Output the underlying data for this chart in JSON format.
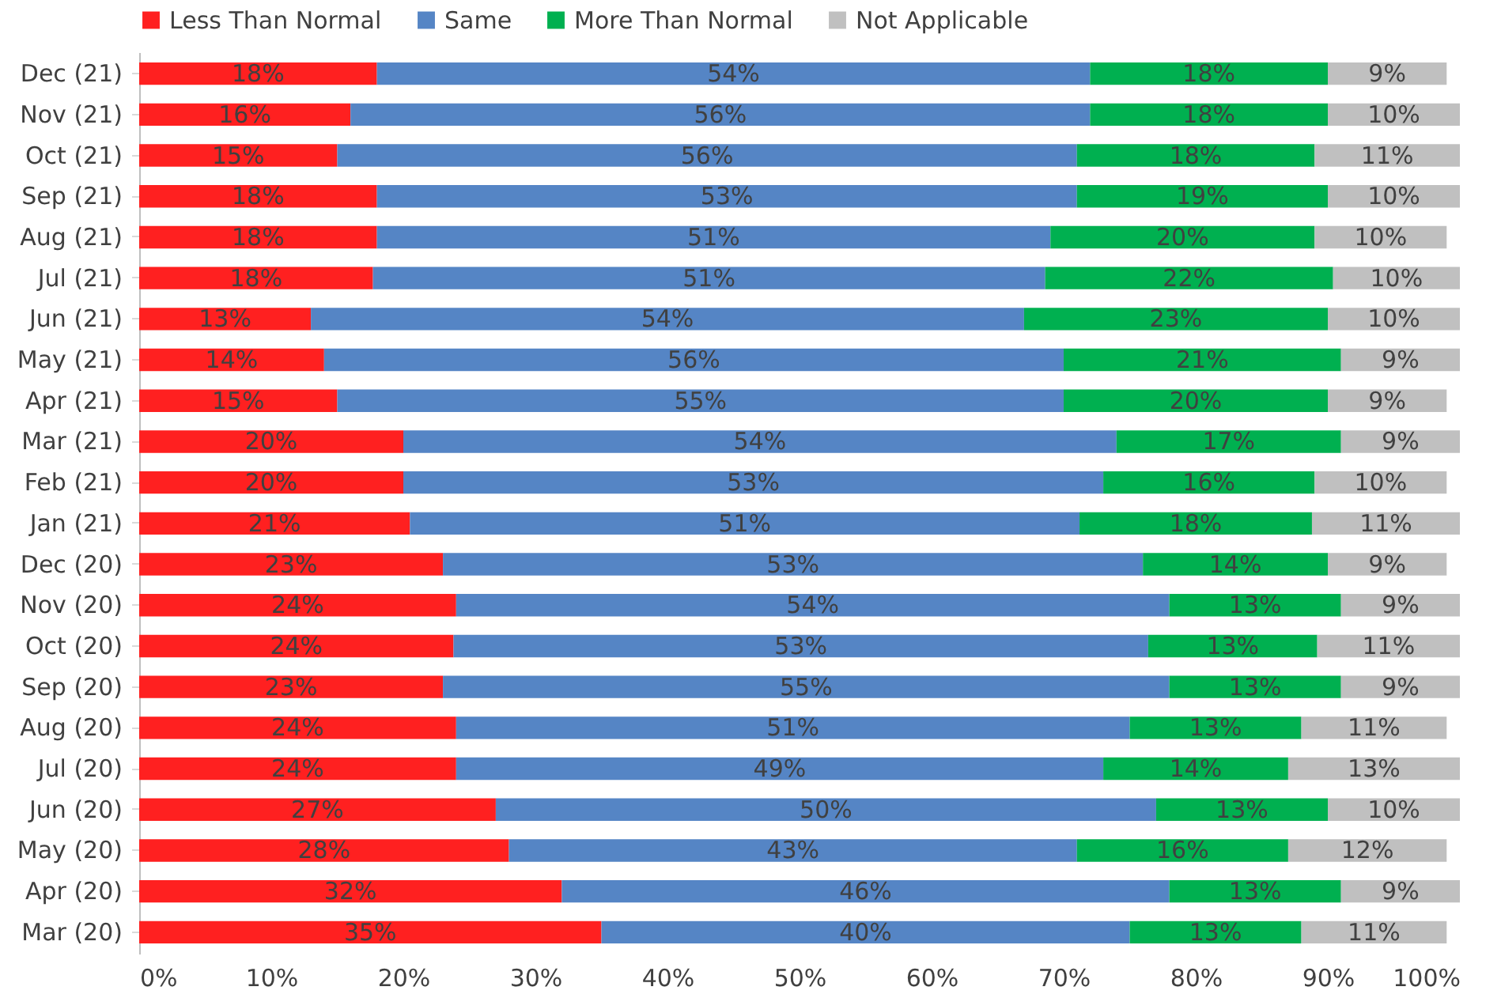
{
  "chart_data": {
    "type": "bar",
    "orientation": "horizontal",
    "stacked": true,
    "legend": "top",
    "grid": false,
    "xlim": [
      0,
      100
    ],
    "xticks": [
      {
        "value": 0,
        "label": "0%"
      },
      {
        "value": 10,
        "label": "10%"
      },
      {
        "value": 20,
        "label": "20%"
      },
      {
        "value": 30,
        "label": "30%"
      },
      {
        "value": 40,
        "label": "40%"
      },
      {
        "value": 50,
        "label": "50%"
      },
      {
        "value": 60,
        "label": "60%"
      },
      {
        "value": 70,
        "label": "70%"
      },
      {
        "value": 80,
        "label": "80%"
      },
      {
        "value": 90,
        "label": "90%"
      },
      {
        "value": 100,
        "label": "100%"
      }
    ],
    "categories": [
      "Dec (21)",
      "Nov (21)",
      "Oct (21)",
      "Sep (21)",
      "Aug (21)",
      "Jul (21)",
      "Jun (21)",
      "May (21)",
      "Apr (21)",
      "Mar (21)",
      "Feb (21)",
      "Jan (21)",
      "Dec (20)",
      "Nov (20)",
      "Oct (20)",
      "Sep (20)",
      "Aug (20)",
      "Jul (20)",
      "Jun (20)",
      "May (20)",
      "Apr (20)",
      "Mar (20)"
    ],
    "series": [
      {
        "name": "Less Than Normal",
        "color": "#ff2020",
        "values": [
          18,
          16,
          15,
          18,
          18,
          17.7,
          13,
          14,
          15,
          20,
          20,
          20.5,
          23,
          24,
          23.8,
          23,
          24,
          24,
          27,
          28,
          32,
          35
        ],
        "value_labels": [
          "18%",
          "16%",
          "15%",
          "18%",
          "18%",
          "18%",
          "13%",
          "14%",
          "15%",
          "20%",
          "20%",
          "21%",
          "23%",
          "24%",
          "24%",
          "23%",
          "24%",
          "24%",
          "27%",
          "28%",
          "32%",
          "35%"
        ]
      },
      {
        "name": "Same",
        "color": "#5585c5",
        "values": [
          54,
          56,
          56,
          53,
          51,
          50.9,
          54,
          56,
          55,
          54,
          53,
          50.7,
          53,
          54,
          52.6,
          55,
          51,
          49,
          50,
          43,
          46,
          40
        ],
        "value_labels": [
          "54%",
          "56%",
          "56%",
          "53%",
          "51%",
          "51%",
          "54%",
          "56%",
          "55%",
          "54%",
          "53%",
          "51%",
          "53%",
          "54%",
          "53%",
          "55%",
          "51%",
          "49%",
          "50%",
          "43%",
          "46%",
          "40%"
        ]
      },
      {
        "name": "More Than Normal",
        "color": "#00b050",
        "values": [
          18,
          18,
          18,
          19,
          20,
          21.8,
          23,
          21,
          20,
          17,
          16,
          17.6,
          14,
          13,
          12.8,
          13,
          13,
          14,
          13,
          16,
          13,
          13
        ],
        "value_labels": [
          "18%",
          "18%",
          "18%",
          "19%",
          "20%",
          "22%",
          "23%",
          "21%",
          "20%",
          "17%",
          "16%",
          "18%",
          "14%",
          "13%",
          "13%",
          "13%",
          "13%",
          "14%",
          "13%",
          "16%",
          "13%",
          "13%"
        ]
      },
      {
        "name": "Not Applicable",
        "color": "#c0c0c0",
        "values": [
          9,
          10,
          11,
          10,
          10,
          9.6,
          10,
          9,
          9,
          9,
          10,
          11.2,
          9,
          9,
          10.8,
          9,
          11,
          13,
          10,
          12,
          9,
          11
        ],
        "value_labels": [
          "9%",
          "10%",
          "11%",
          "10%",
          "10%",
          "10%",
          "10%",
          "9%",
          "9%",
          "9%",
          "10%",
          "11%",
          "9%",
          "9%",
          "11%",
          "9%",
          "11%",
          "13%",
          "10%",
          "12%",
          "9%",
          "11%"
        ]
      }
    ]
  }
}
